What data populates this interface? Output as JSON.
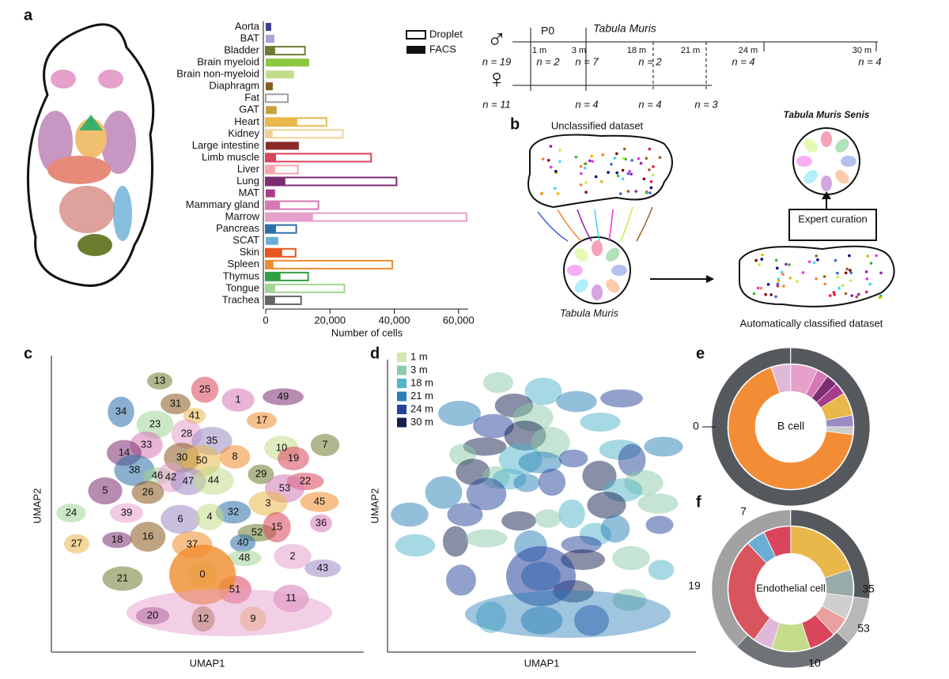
{
  "panel_labels": [
    "a",
    "b",
    "c",
    "d",
    "e",
    "f"
  ],
  "chart_data": {
    "type": "bar",
    "orientation": "horizontal",
    "categories": [
      "Aorta",
      "BAT",
      "Bladder",
      "Brain myeloid",
      "Brain non-myeloid",
      "Diaphragm",
      "Fat",
      "GAT",
      "Heart",
      "Kidney",
      "Large intestine",
      "Limb muscle",
      "Liver",
      "Lung",
      "MAT",
      "Mammary gland",
      "Marrow",
      "Pancreas",
      "SCAT",
      "Skin",
      "Spleen",
      "Thymus",
      "Tongue",
      "Trachea"
    ],
    "colors": [
      "#3a3f8f",
      "#a7a3d6",
      "#6b7d2e",
      "#8dc63f",
      "#c5dc8a",
      "#8b5a1e",
      "#a0a0a0",
      "#c8a13a",
      "#e8b84a",
      "#f0d39a",
      "#8b2a2a",
      "#d9455a",
      "#f4a6a8",
      "#7b2d6f",
      "#a53c8c",
      "#d678b4",
      "#e6a0cc",
      "#2b6fa8",
      "#6aaed6",
      "#e8561e",
      "#f08c2c",
      "#2ea043",
      "#a3d495",
      "#666666"
    ],
    "series": [
      {
        "name": "Droplet",
        "values": [
          null,
          null,
          12200,
          null,
          null,
          null,
          6900,
          null,
          18900,
          24000,
          null,
          32800,
          10000,
          40700,
          null,
          16400,
          62500,
          9500,
          null,
          9300,
          39400,
          13200,
          24500,
          11000
        ]
      },
      {
        "name": "FACS",
        "values": [
          1700,
          2700,
          2900,
          13500,
          8800,
          2200,
          null,
          3400,
          9800,
          2200,
          10300,
          3200,
          2900,
          6100,
          2900,
          4400,
          14700,
          3200,
          3900,
          5100,
          2400,
          4600,
          2900,
          2900
        ]
      }
    ],
    "xlabel": "Number of cells",
    "xlim": [
      0,
      63000
    ],
    "xticks": [
      0,
      {
        "value": 20000,
        "label": "20,000"
      },
      {
        "value": 40000,
        "label": "40,000"
      },
      {
        "value": 60000,
        "label": "60,000"
      }
    ]
  },
  "timeline": {
    "male_symbol": "♂",
    "female_symbol": "♀",
    "labels": [
      "P0",
      "Tabula Muris",
      "1 m",
      "3 m",
      "18 m",
      "21 m",
      "24 m",
      "30 m"
    ],
    "male_counts": [
      "n = 19",
      "n = 2",
      "n = 7",
      "n = 2",
      "n = 4",
      "n = 4"
    ],
    "female_counts": [
      "n = 11",
      "n = 4",
      "n = 4",
      "n = 3"
    ]
  },
  "schematic": {
    "unclassified": "Unclassified dataset",
    "reference": "Tabula Muris",
    "senis": "Tabula Muris Senis",
    "curation": "Expert curation",
    "classified": "Automatically classified dataset"
  },
  "umap_c": {
    "xlabel": "UMAP1",
    "ylabel": "UMAP2",
    "clusters": [
      "13",
      "25",
      "1",
      "49",
      "31",
      "41",
      "17",
      "34",
      "23",
      "28",
      "35",
      "10",
      "7",
      "19",
      "33",
      "14",
      "30",
      "50",
      "8",
      "38",
      "46",
      "42",
      "47",
      "44",
      "29",
      "22",
      "53",
      "5",
      "26",
      "3",
      "45",
      "32",
      "24",
      "39",
      "6",
      "4",
      "52",
      "15",
      "36",
      "18",
      "16",
      "27",
      "37",
      "40",
      "48",
      "2",
      "43",
      "0",
      "21",
      "51",
      "11",
      "20",
      "12",
      "9"
    ]
  },
  "umap_d": {
    "xlabel": "UMAP1",
    "ylabel": "UMAP2",
    "legend": [
      {
        "label": "1 m",
        "color": "#d6e6b0"
      },
      {
        "label": "3 m",
        "color": "#8ccaa8"
      },
      {
        "label": "18 m",
        "color": "#4fb3c9"
      },
      {
        "label": "21 m",
        "color": "#2a7fb8"
      },
      {
        "label": "24 m",
        "color": "#25439a"
      },
      {
        "label": "30 m",
        "color": "#14204f"
      }
    ]
  },
  "donut_e": {
    "center": "B cell",
    "labels": [
      "0"
    ]
  },
  "donut_f": {
    "center": "Endothelial cell",
    "labels": [
      "7",
      "19",
      "35",
      "53",
      "10"
    ]
  }
}
